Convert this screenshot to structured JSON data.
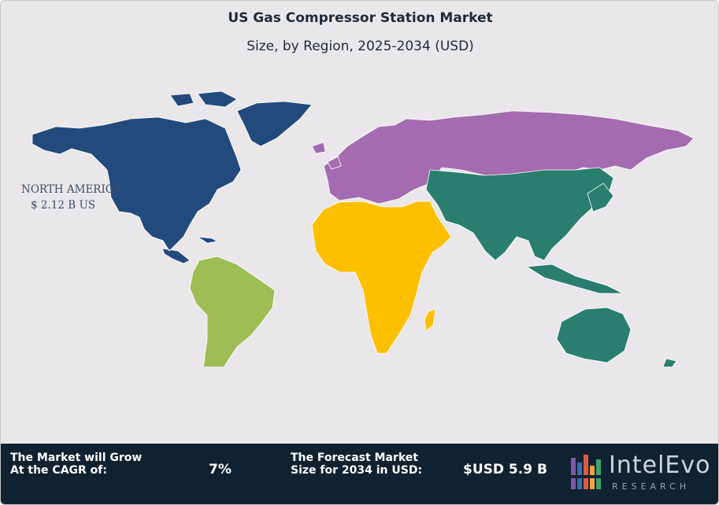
{
  "header": {
    "title": "US Gas Compressor Station Market",
    "subtitle": "Size, by Region, 2025-2034 (USD)"
  },
  "map": {
    "regions": [
      {
        "name": "North America",
        "color": "#224a7c",
        "label": "NORTH AMERICA",
        "value": "$ 2.12 B US"
      },
      {
        "name": "South America",
        "color": "#9fbd55"
      },
      {
        "name": "Europe & Russia",
        "color": "#a56bb0"
      },
      {
        "name": "Africa & Middle East",
        "color": "#fcc000"
      },
      {
        "name": "Asia Pacific",
        "color": "#2a7e6e"
      }
    ]
  },
  "footer": {
    "cagr_label": "The Market will Grow At the CAGR of:",
    "cagr_value": "7%",
    "forecast_label": "The Forecast Market Size for 2034 in USD:",
    "forecast_value": "$USD 5.9 B",
    "logo": {
      "name": "IntelEvo",
      "sub": "RESEARCH"
    }
  }
}
